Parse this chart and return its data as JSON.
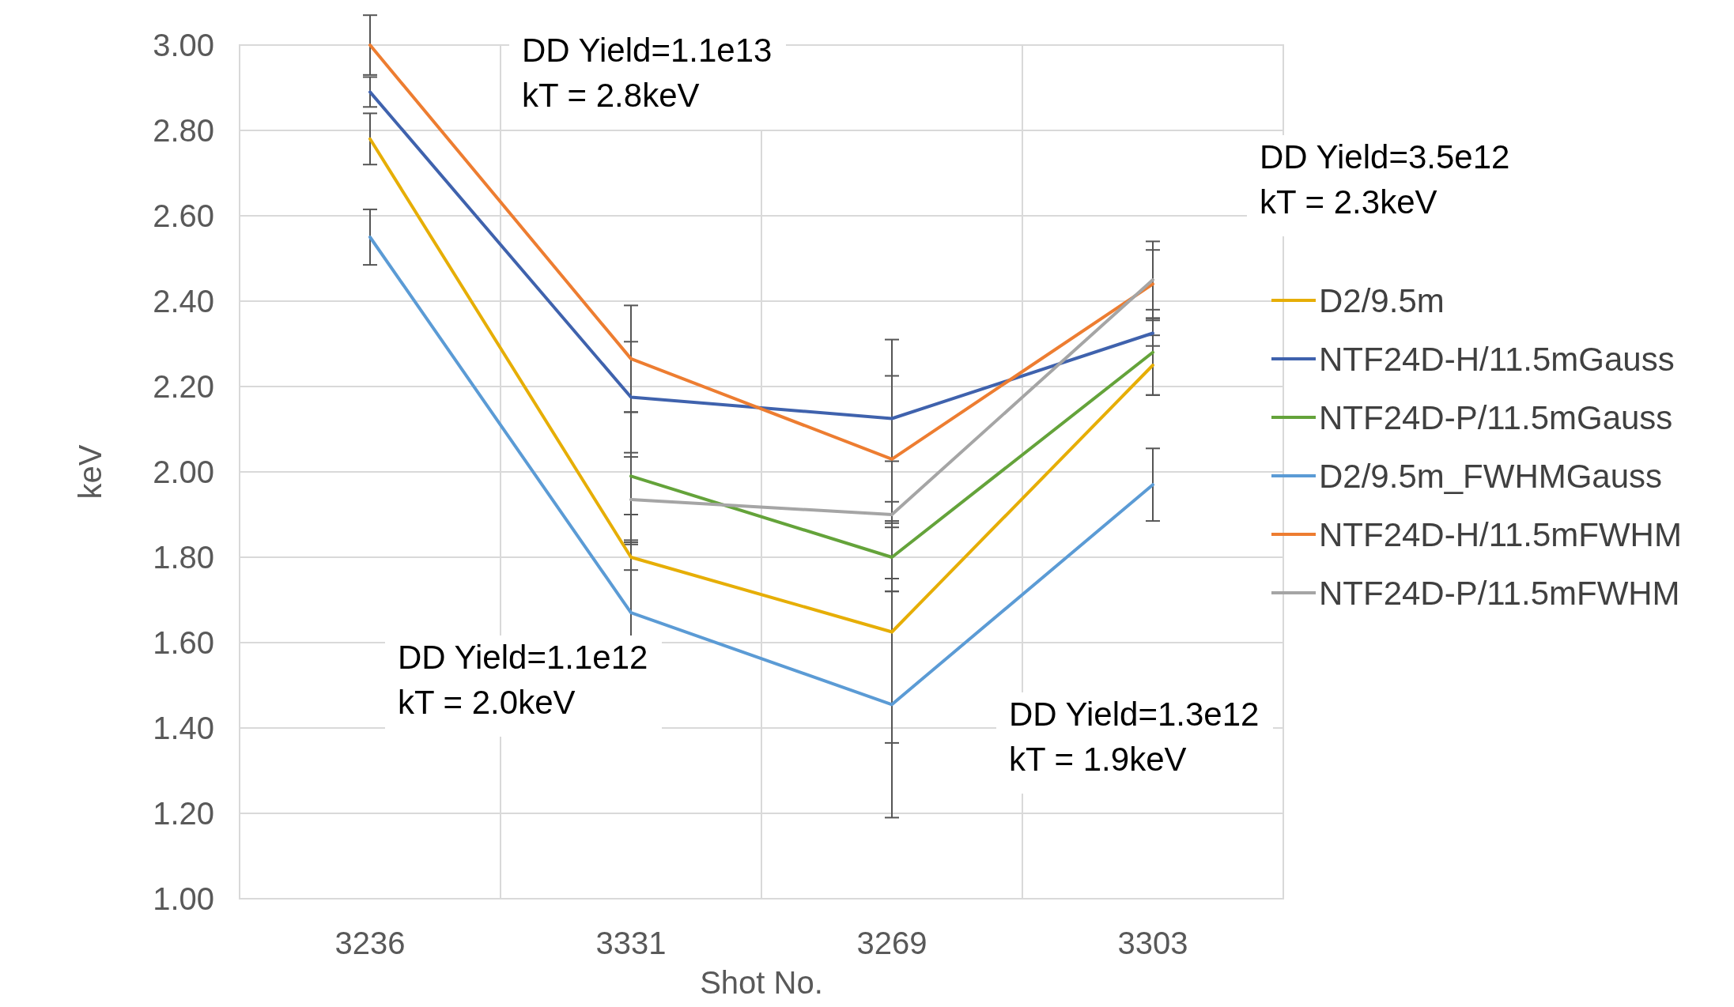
{
  "chart_data": {
    "type": "line",
    "xlabel": "Shot No.",
    "ylabel": "keV",
    "categories": [
      "3236",
      "3331",
      "3269",
      "3303"
    ],
    "series": [
      {
        "name": "D2/9.5m",
        "color": "#e6ae06",
        "values": [
          2.78,
          1.8,
          1.625,
          2.25
        ],
        "errors": [
          0.06,
          0.03,
          0.26,
          0.07
        ]
      },
      {
        "name": "NTF24D-H/11.5mGauss",
        "color": "#3f62ad",
        "values": [
          2.89,
          2.175,
          2.125,
          2.325
        ],
        "errors": [
          0.035,
          0.13,
          0.1,
          0.03
        ]
      },
      {
        "name": "NTF24D-P/11.5mGauss",
        "color": "#64a33a",
        "values": [
          null,
          1.99,
          1.8,
          2.28
        ],
        "errors": [
          null,
          0.15,
          0.08,
          0.1
        ]
      },
      {
        "name": "D2/9.5m_FWHMGauss",
        "color": "#5b9bd5",
        "values": [
          2.55,
          1.67,
          1.455,
          1.97
        ],
        "errors": [
          0.065,
          0.23,
          0.265,
          0.085
        ]
      },
      {
        "name": "NTF24D-H/11.5mFWHM",
        "color": "#ed7d31",
        "values": [
          3.0,
          2.265,
          2.03,
          2.44
        ],
        "errors": [
          0.07,
          0.125,
          0.28,
          0.08
        ]
      },
      {
        "name": "NTF24D-P/11.5mFWHM",
        "color": "#a5a5a5",
        "values": [
          null,
          1.935,
          1.9,
          2.45
        ],
        "errors": [
          null,
          0.1,
          0.03,
          0.09
        ]
      }
    ],
    "ylim": [
      1.0,
      3.0
    ],
    "yticks": [
      {
        "value": 1.0,
        "label": "1.00"
      },
      {
        "value": 1.2,
        "label": "1.20"
      },
      {
        "value": 1.4,
        "label": "1.40"
      },
      {
        "value": 1.6,
        "label": "1.60"
      },
      {
        "value": 1.8,
        "label": "1.80"
      },
      {
        "value": 2.0,
        "label": "2.00"
      },
      {
        "value": 2.2,
        "label": "2.20"
      },
      {
        "value": 2.4,
        "label": "2.40"
      },
      {
        "value": 2.6,
        "label": "2.60"
      },
      {
        "value": 2.8,
        "label": "2.80"
      },
      {
        "value": 3.0,
        "label": "3.00"
      }
    ],
    "grid": true,
    "legend": "right",
    "marker": "none",
    "line_style": "solid",
    "annotations": [
      "DD Yield=1.1e13\nkT = 2.8keV",
      "DD Yield=3.5e12\nkT = 2.3keV",
      "DD Yield=1.1e12\nkT = 2.0keV",
      "DD Yield=1.3e12\nkT = 1.9keV"
    ]
  }
}
